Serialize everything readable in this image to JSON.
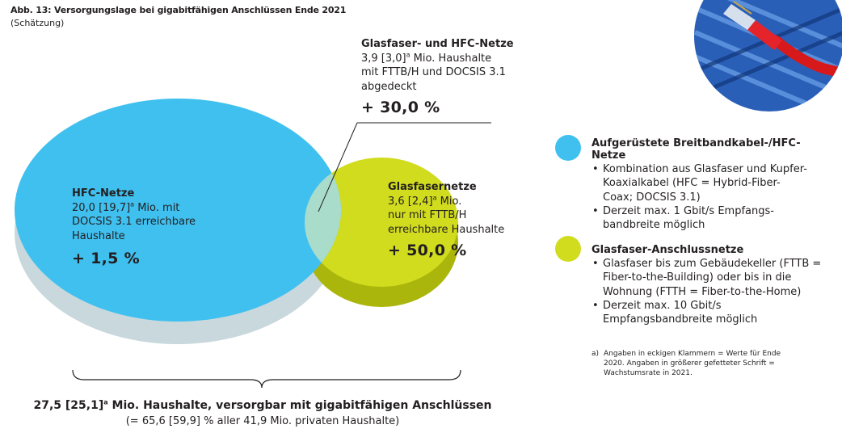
{
  "figure": {
    "title": "Abb. 13: Versorgungslage bei gigabitfähigen Anschlüssen Ende 2021",
    "subtitle": "(Schätzung)"
  },
  "colors": {
    "hfc": "#3fc0ef",
    "hfc_shadow": "#c8d8dd",
    "fiber": "#d1dc1e",
    "fiber_shadow": "#aab60c",
    "overlap": "#a9dccb"
  },
  "overlap": {
    "heading": "Glasfaser- und HFC-Netze",
    "line1_a": "3,9 [3,0]",
    "line1_sup": "a",
    "line1_b": " Mio. Haushalte",
    "line2": "mit FTTB/H und DOCSIS 3.1",
    "line3": "abgedeckt",
    "growth": "+ 30,0 %"
  },
  "hfc": {
    "heading": "HFC-Netze",
    "line1_a": "20,0 [19,7]",
    "line1_sup": "a",
    "line1_b": " Mio. mit",
    "line2": "DOCSIS 3.1 erreichbare",
    "line3": "Haushalte",
    "growth": "+ 1,5 %"
  },
  "fiber": {
    "heading": "Glasfasernetze",
    "line1_a": "3,6 [2,4]",
    "line1_sup": "a",
    "line1_b": " Mio.",
    "line2": "nur mit FTTB/H",
    "line3": "erreichbare Haushalte",
    "growth": "+ 50,0 %"
  },
  "legend": {
    "hfc": {
      "heading": "Aufgerüstete Breitbandkabel-/HFC-Netze",
      "items": [
        "Kombination aus Glasfaser und Kupfer-Koaxialkabel (HFC = Hybrid-Fiber-Coax; DOCSIS 3.1)",
        "Derzeit max. 1 Gbit/s Empfangs-bandbreite möglich"
      ]
    },
    "fiber": {
      "heading": "Glasfaser-Anschlussnetze",
      "items": [
        "Glasfaser bis zum Gebäudekeller (FTTB = Fiber-to-the-Building) oder bis in die Wohnung (FTTH = Fiber-to-the-Home)",
        "Derzeit max. 10 Gbit/s Empfangsbandbreite möglich"
      ]
    }
  },
  "footnote": {
    "marker": "a)",
    "text": "Angaben in eckigen Klammern = Werte für Ende 2020. Angaben in größerer gefetteter Schrift = Wachstumsrate in 2021."
  },
  "summary": {
    "line1_a": "27,5 [25,1]",
    "line1_sup": "a",
    "line1_b": " Mio. Haushalte, versorgbar mit gigabitfähigen Anschlüssen",
    "line2": "(= 65,6 [59,9] % aller 41,9 Mio. privaten Haushalte)"
  },
  "photo": {
    "icon": "ethernet-cable-photo"
  }
}
